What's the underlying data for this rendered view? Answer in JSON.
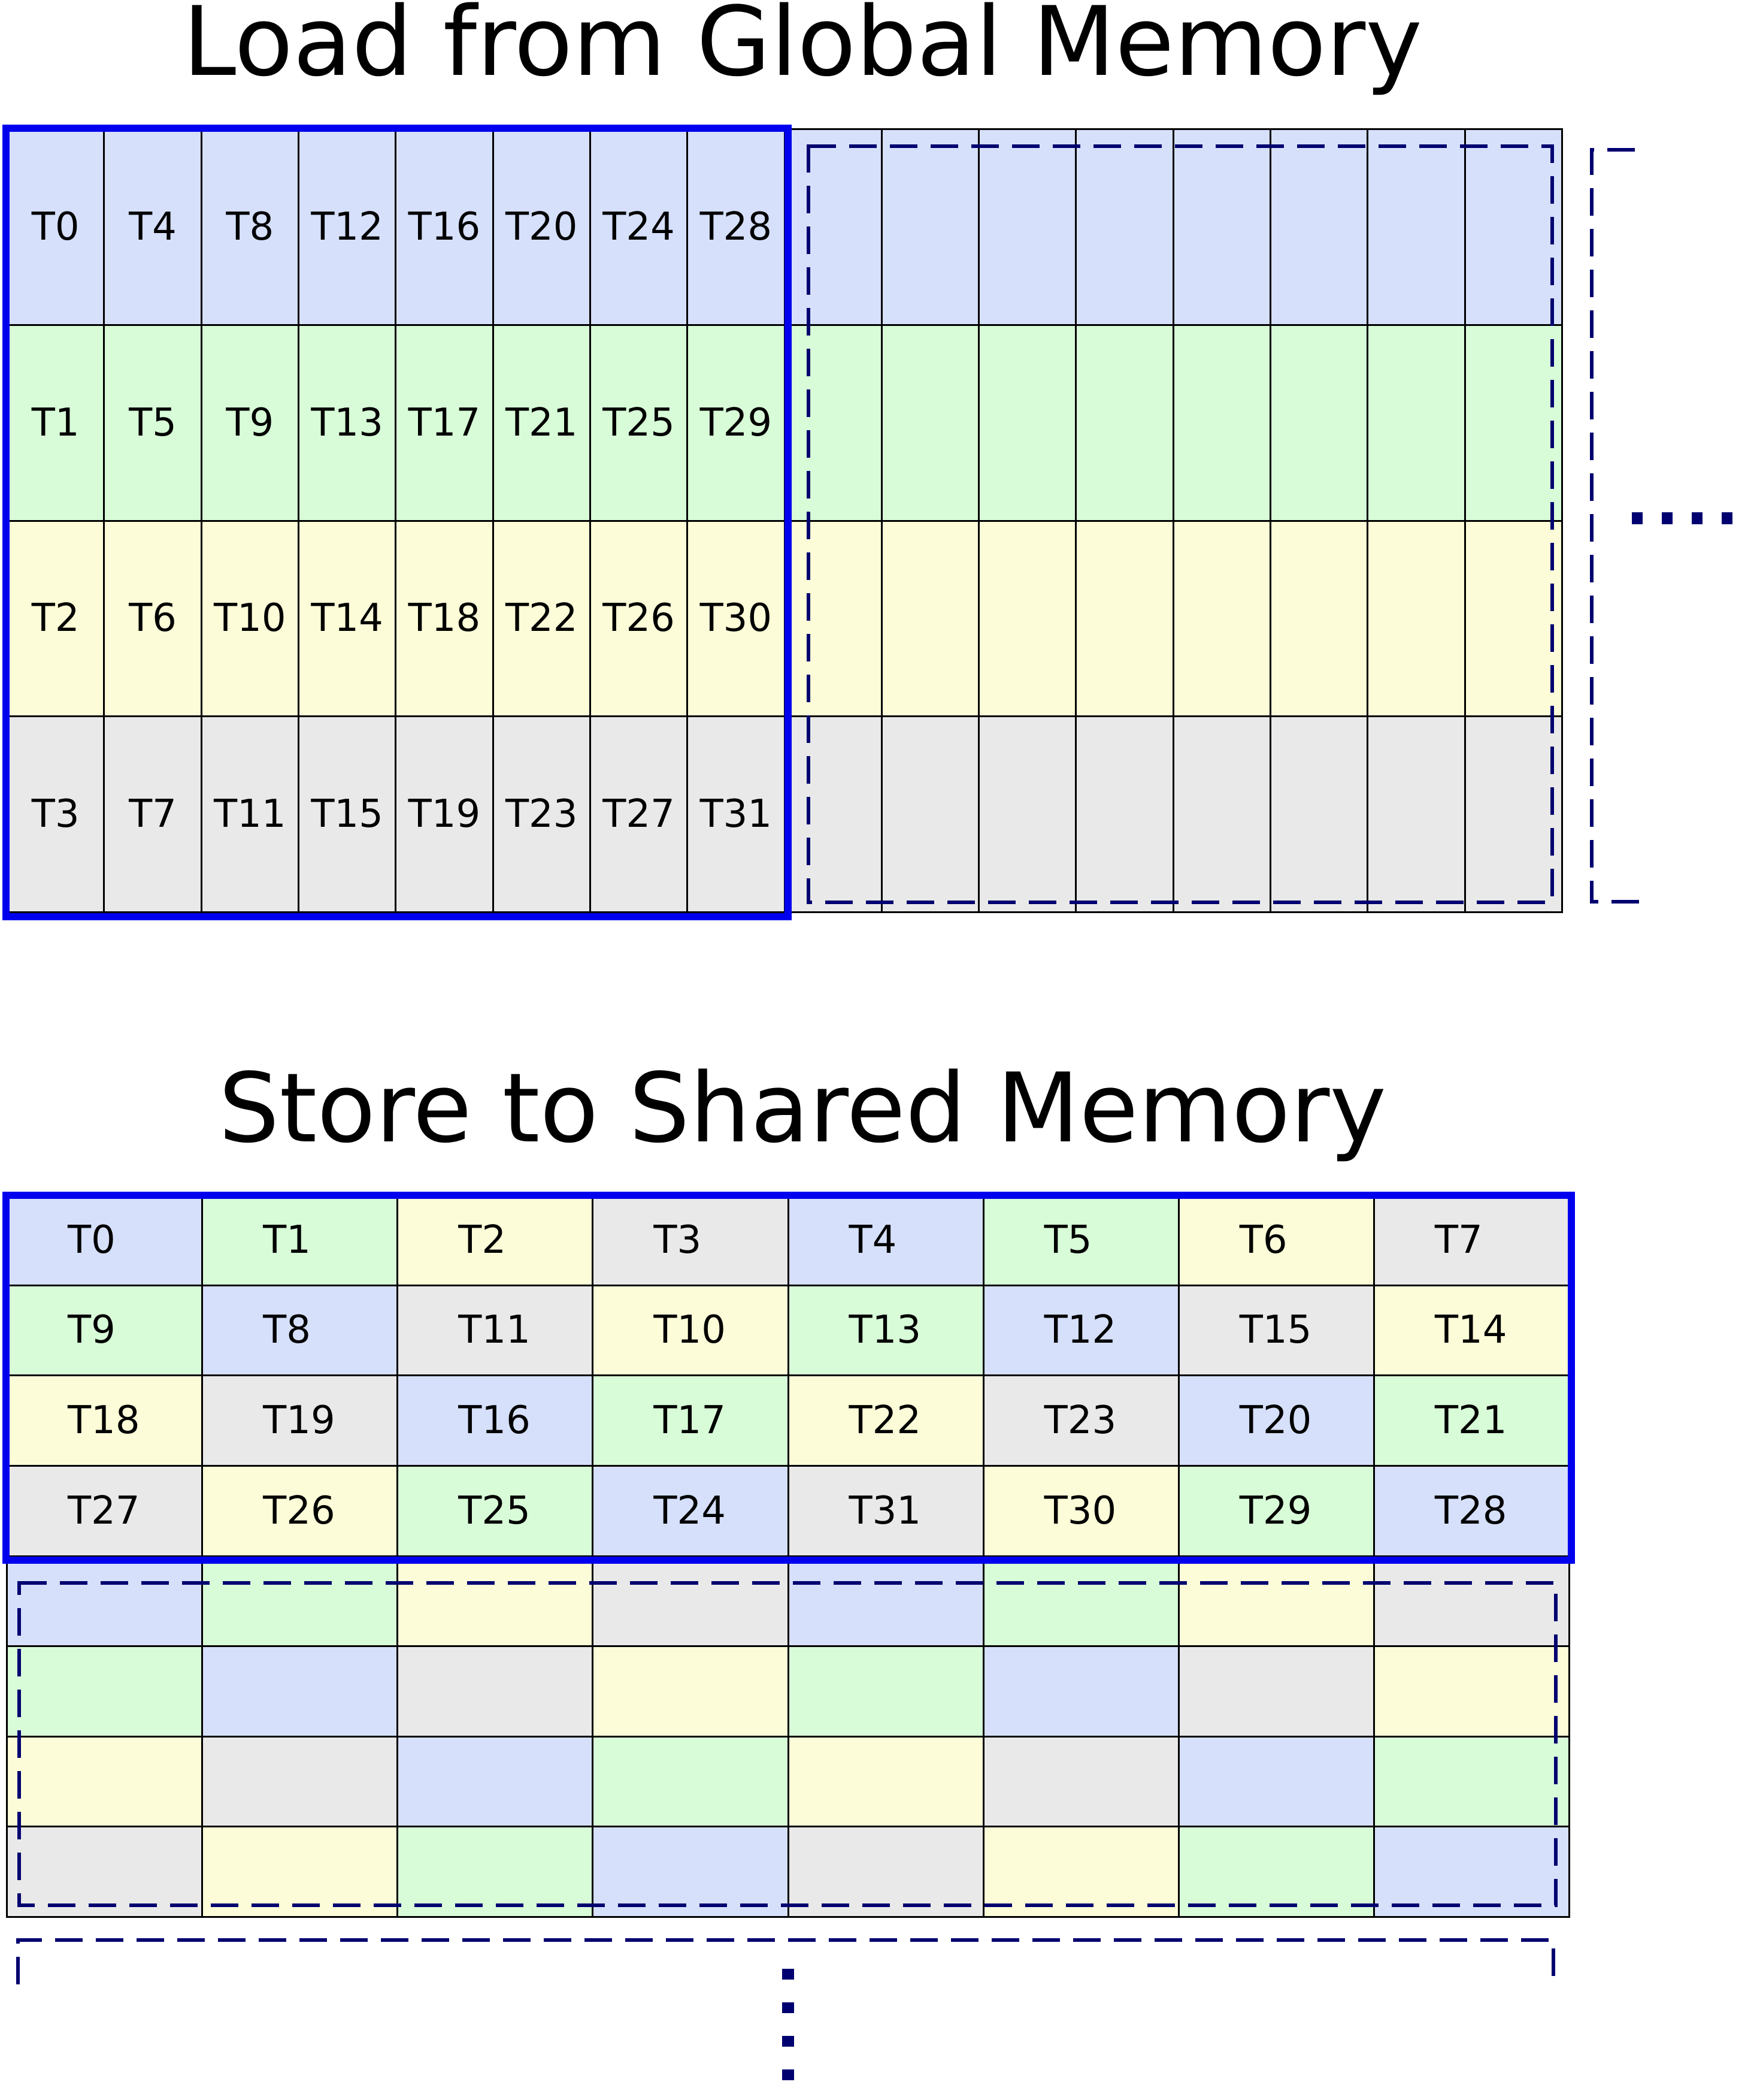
{
  "titles": {
    "load": "Load from Global Memory",
    "store": "Store to Shared Memory"
  },
  "colors": {
    "blue_fill": "#d6e0fb",
    "green_fill": "#d8fcd8",
    "yellow_fill": "#fcfdd8",
    "gray_fill": "#e9e9e9",
    "highlight_border": "#0000ee",
    "dashed_border": "#000070"
  },
  "global_memory": {
    "rows": [
      {
        "fill": "#d6e0fb",
        "labels": [
          "T0",
          "T4",
          "T8",
          "T12",
          "T16",
          "T20",
          "T24",
          "T28"
        ]
      },
      {
        "fill": "#d8fcd8",
        "labels": [
          "T1",
          "T5",
          "T9",
          "T13",
          "T17",
          "T21",
          "T25",
          "T29"
        ]
      },
      {
        "fill": "#fcfdd8",
        "labels": [
          "T2",
          "T6",
          "T10",
          "T14",
          "T18",
          "T22",
          "T26",
          "T30"
        ]
      },
      {
        "fill": "#e9e9e9",
        "labels": [
          "T3",
          "T7",
          "T11",
          "T15",
          "T19",
          "T23",
          "T27",
          "T31"
        ]
      }
    ]
  },
  "shared_memory": {
    "rows": [
      [
        {
          "t": "T0",
          "c": "#d6e0fb"
        },
        {
          "t": "T1",
          "c": "#d8fcd8"
        },
        {
          "t": "T2",
          "c": "#fcfdd8"
        },
        {
          "t": "T3",
          "c": "#e9e9e9"
        },
        {
          "t": "T4",
          "c": "#d6e0fb"
        },
        {
          "t": "T5",
          "c": "#d8fcd8"
        },
        {
          "t": "T6",
          "c": "#fcfdd8"
        },
        {
          "t": "T7",
          "c": "#e9e9e9"
        }
      ],
      [
        {
          "t": "T9",
          "c": "#d8fcd8"
        },
        {
          "t": "T8",
          "c": "#d6e0fb"
        },
        {
          "t": "T11",
          "c": "#e9e9e9"
        },
        {
          "t": "T10",
          "c": "#fcfdd8"
        },
        {
          "t": "T13",
          "c": "#d8fcd8"
        },
        {
          "t": "T12",
          "c": "#d6e0fb"
        },
        {
          "t": "T15",
          "c": "#e9e9e9"
        },
        {
          "t": "T14",
          "c": "#fcfdd8"
        }
      ],
      [
        {
          "t": "T18",
          "c": "#fcfdd8"
        },
        {
          "t": "T19",
          "c": "#e9e9e9"
        },
        {
          "t": "T16",
          "c": "#d6e0fb"
        },
        {
          "t": "T17",
          "c": "#d8fcd8"
        },
        {
          "t": "T22",
          "c": "#fcfdd8"
        },
        {
          "t": "T23",
          "c": "#e9e9e9"
        },
        {
          "t": "T20",
          "c": "#d6e0fb"
        },
        {
          "t": "T21",
          "c": "#d8fcd8"
        }
      ],
      [
        {
          "t": "T27",
          "c": "#e9e9e9"
        },
        {
          "t": "T26",
          "c": "#fcfdd8"
        },
        {
          "t": "T25",
          "c": "#d8fcd8"
        },
        {
          "t": "T24",
          "c": "#d6e0fb"
        },
        {
          "t": "T31",
          "c": "#e9e9e9"
        },
        {
          "t": "T30",
          "c": "#fcfdd8"
        },
        {
          "t": "T29",
          "c": "#d8fcd8"
        },
        {
          "t": "T28",
          "c": "#d6e0fb"
        }
      ],
      [
        {
          "t": "",
          "c": "#d6e0fb"
        },
        {
          "t": "",
          "c": "#d8fcd8"
        },
        {
          "t": "",
          "c": "#fcfdd8"
        },
        {
          "t": "",
          "c": "#e9e9e9"
        },
        {
          "t": "",
          "c": "#d6e0fb"
        },
        {
          "t": "",
          "c": "#d8fcd8"
        },
        {
          "t": "",
          "c": "#fcfdd8"
        },
        {
          "t": "",
          "c": "#e9e9e9"
        }
      ],
      [
        {
          "t": "",
          "c": "#d8fcd8"
        },
        {
          "t": "",
          "c": "#d6e0fb"
        },
        {
          "t": "",
          "c": "#e9e9e9"
        },
        {
          "t": "",
          "c": "#fcfdd8"
        },
        {
          "t": "",
          "c": "#d8fcd8"
        },
        {
          "t": "",
          "c": "#d6e0fb"
        },
        {
          "t": "",
          "c": "#e9e9e9"
        },
        {
          "t": "",
          "c": "#fcfdd8"
        }
      ],
      [
        {
          "t": "",
          "c": "#fcfdd8"
        },
        {
          "t": "",
          "c": "#e9e9e9"
        },
        {
          "t": "",
          "c": "#d6e0fb"
        },
        {
          "t": "",
          "c": "#d8fcd8"
        },
        {
          "t": "",
          "c": "#fcfdd8"
        },
        {
          "t": "",
          "c": "#e9e9e9"
        },
        {
          "t": "",
          "c": "#d6e0fb"
        },
        {
          "t": "",
          "c": "#d8fcd8"
        }
      ],
      [
        {
          "t": "",
          "c": "#e9e9e9"
        },
        {
          "t": "",
          "c": "#fcfdd8"
        },
        {
          "t": "",
          "c": "#d8fcd8"
        },
        {
          "t": "",
          "c": "#d6e0fb"
        },
        {
          "t": "",
          "c": "#e9e9e9"
        },
        {
          "t": "",
          "c": "#fcfdd8"
        },
        {
          "t": "",
          "c": "#d8fcd8"
        },
        {
          "t": "",
          "c": "#d6e0fb"
        }
      ]
    ]
  }
}
